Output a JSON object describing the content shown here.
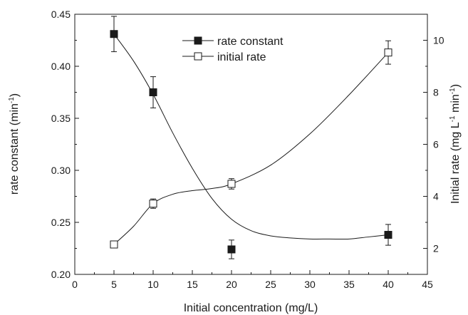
{
  "chart_data": {
    "type": "scatter",
    "title": "",
    "xlabel": "Initial concentration (mg/L)",
    "ylabel_left": "rate constant (min",
    "ylabel_left_sup": "-1",
    "ylabel_left_end": ")",
    "ylabel_right": "Initial rate (mg L",
    "ylabel_right_sup1": "-1",
    "ylabel_right_mid": " min",
    "ylabel_right_sup2": "-1",
    "ylabel_right_end": ")",
    "xlim": [
      0,
      45
    ],
    "ylim_left": [
      0.2,
      0.45
    ],
    "ylim_right": [
      1,
      11
    ],
    "x_ticks": [
      "0",
      "5",
      "10",
      "15",
      "20",
      "25",
      "30",
      "35",
      "40",
      "45"
    ],
    "y_left_ticks": [
      "0.20",
      "0.25",
      "0.30",
      "0.35",
      "0.40",
      "0.45"
    ],
    "y_right_ticks": [
      "2",
      "4",
      "6",
      "8",
      "10"
    ],
    "grid": false,
    "legend_position": "top-center",
    "series": [
      {
        "name": "rate constant",
        "axis": "left",
        "marker": "filled-square",
        "x": [
          5,
          10,
          20,
          40
        ],
        "y": [
          0.431,
          0.375,
          0.224,
          0.238
        ],
        "err": [
          0.017,
          0.015,
          0.009,
          0.01
        ],
        "curve_x": [
          5,
          7.5,
          10,
          12.5,
          15,
          17.5,
          20,
          22.5,
          25,
          27.5,
          30,
          32.5,
          35,
          37.5,
          40
        ],
        "curve_y": [
          0.431,
          0.405,
          0.373,
          0.336,
          0.302,
          0.273,
          0.253,
          0.242,
          0.237,
          0.235,
          0.234,
          0.234,
          0.234,
          0.236,
          0.238
        ]
      },
      {
        "name": "initial rate",
        "axis": "right",
        "marker": "open-square",
        "x": [
          5,
          10,
          20,
          40
        ],
        "y": [
          2.15,
          3.72,
          4.48,
          9.53
        ],
        "err": [
          0.08,
          0.18,
          0.2,
          0.45
        ],
        "curve_x": [
          5,
          7.5,
          10,
          12.5,
          15,
          17.5,
          20,
          25,
          30,
          35,
          40
        ],
        "curve_y": [
          2.15,
          2.85,
          3.72,
          4.08,
          4.22,
          4.3,
          4.48,
          5.2,
          6.4,
          7.9,
          9.53
        ]
      }
    ]
  }
}
